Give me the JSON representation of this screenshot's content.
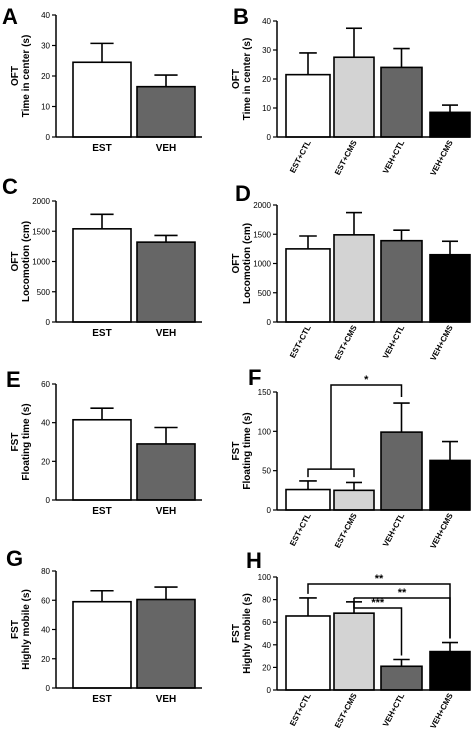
{
  "chart_data": [
    {
      "panel": "A",
      "type": "bar",
      "categories": [
        "EST",
        "VEH"
      ],
      "values": [
        24.5,
        16.5
      ],
      "errors": [
        6.2,
        3.8
      ],
      "ylabel_line1": "OFT",
      "ylabel_line2": "Time in center (s)",
      "ylim": [
        0,
        40
      ],
      "yticks": [
        0,
        10,
        20,
        30,
        40
      ],
      "colors": [
        "#ffffff",
        "#666666"
      ],
      "rotated_labels": false,
      "brackets": []
    },
    {
      "panel": "B",
      "type": "bar",
      "categories": [
        "EST+CTL",
        "EST+CMS",
        "VEH+CTL",
        "VEH+CMS"
      ],
      "values": [
        21.5,
        27.5,
        24.0,
        8.5
      ],
      "errors": [
        7.5,
        10.0,
        6.5,
        2.5
      ],
      "ylabel_line1": "OFT",
      "ylabel_line2": "Time in center (s)",
      "ylim": [
        0,
        40
      ],
      "yticks": [
        0,
        10,
        20,
        30,
        40
      ],
      "colors": [
        "#ffffff",
        "#d3d3d3",
        "#666666",
        "#000000"
      ],
      "rotated_labels": true,
      "brackets": []
    },
    {
      "panel": "C",
      "type": "bar",
      "categories": [
        "EST",
        "VEH"
      ],
      "values": [
        1540,
        1320
      ],
      "errors": [
        240,
        110
      ],
      "ylabel_line1": "OFT",
      "ylabel_line2": "Locomotion (cm)",
      "ylim": [
        0,
        2000
      ],
      "yticks": [
        0,
        500,
        1000,
        1500,
        2000
      ],
      "colors": [
        "#ffffff",
        "#666666"
      ],
      "rotated_labels": false,
      "brackets": []
    },
    {
      "panel": "D",
      "type": "bar",
      "categories": [
        "EST+CTL",
        "EST+CMS",
        "VEH+CTL",
        "VEH+CMS"
      ],
      "values": [
        1250,
        1490,
        1390,
        1150
      ],
      "errors": [
        220,
        380,
        180,
        230
      ],
      "ylabel_line1": "OFT",
      "ylabel_line2": "Locomotion (cm)",
      "ylim": [
        0,
        2000
      ],
      "yticks": [
        0,
        500,
        1000,
        1500,
        2000
      ],
      "colors": [
        "#ffffff",
        "#d3d3d3",
        "#666666",
        "#000000"
      ],
      "rotated_labels": true,
      "brackets": []
    },
    {
      "panel": "E",
      "type": "bar",
      "categories": [
        "EST",
        "VEH"
      ],
      "values": [
        41.5,
        29.0
      ],
      "errors": [
        6.0,
        8.5
      ],
      "ylabel_line1": "FST",
      "ylabel_line2": "Floating time (s)",
      "ylim": [
        0,
        60
      ],
      "yticks": [
        0,
        20,
        40,
        60
      ],
      "colors": [
        "#ffffff",
        "#666666"
      ],
      "rotated_labels": false,
      "brackets": []
    },
    {
      "panel": "F",
      "type": "bar",
      "categories": [
        "EST+CTL",
        "EST+CMS",
        "VEH+CTL",
        "VEH+CMS"
      ],
      "values": [
        26,
        25,
        99,
        63
      ],
      "errors": [
        11,
        10,
        37,
        24
      ],
      "ylabel_line1": "FST",
      "ylabel_line2": "Floating time (s)",
      "ylim": [
        0,
        150
      ],
      "yticks": [
        0,
        50,
        100,
        150
      ],
      "colors": [
        "#ffffff",
        "#d3d3d3",
        "#666666",
        "#000000"
      ],
      "rotated_labels": true,
      "brackets": [
        {
          "from_group": [
            0,
            1
          ],
          "to": 2,
          "label": "*"
        }
      ]
    },
    {
      "panel": "G",
      "type": "bar",
      "categories": [
        "EST",
        "VEH"
      ],
      "values": [
        59,
        60.5
      ],
      "errors": [
        7.5,
        8.5
      ],
      "ylabel_line1": "FST",
      "ylabel_line2": "Highly mobile (s)",
      "ylim": [
        0,
        80
      ],
      "yticks": [
        0,
        20,
        40,
        60,
        80
      ],
      "colors": [
        "#ffffff",
        "#666666"
      ],
      "rotated_labels": false,
      "brackets": []
    },
    {
      "panel": "H",
      "type": "bar",
      "categories": [
        "EST+CTL",
        "EST+CMS",
        "VEH+CTL",
        "VEH+CMS"
      ],
      "values": [
        65.5,
        68.0,
        21.0,
        34.0
      ],
      "errors": [
        16.0,
        10.0,
        6.0,
        8.0
      ],
      "ylabel_line1": "FST",
      "ylabel_line2": "Highly mobile (s)",
      "ylim": [
        0,
        100
      ],
      "yticks": [
        0,
        20,
        40,
        60,
        80,
        100
      ],
      "colors": [
        "#ffffff",
        "#d3d3d3",
        "#666666",
        "#000000"
      ],
      "rotated_labels": true,
      "brackets": [
        {
          "from": 0,
          "to": 3,
          "label": "**"
        },
        {
          "from": 1,
          "to": 3,
          "label": "**"
        },
        {
          "from": 1,
          "to": 2,
          "label": "***"
        }
      ]
    }
  ]
}
